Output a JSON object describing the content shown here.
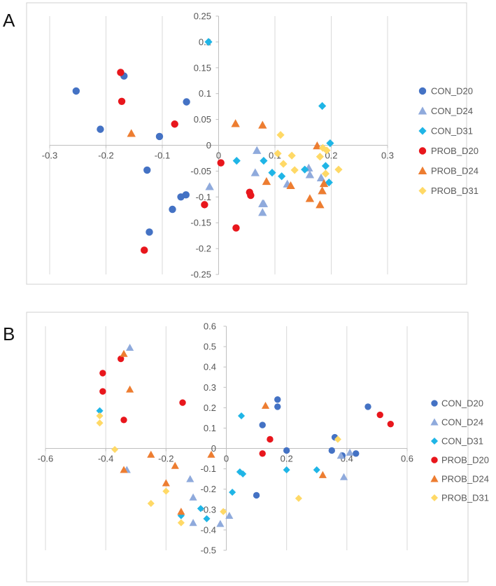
{
  "panels": {
    "a_letter": "A",
    "b_letter": "B"
  },
  "series_styles": [
    {
      "name": "CON_D20",
      "color": "#4472C4",
      "marker": "circle"
    },
    {
      "name": "CON_D24",
      "color": "#8FAADC",
      "marker": "triangle"
    },
    {
      "name": "CON_D31",
      "color": "#1FB5E6",
      "marker": "diamond"
    },
    {
      "name": "PROB_D20",
      "color": "#E8161C",
      "marker": "circle"
    },
    {
      "name": "PROB_D24",
      "color": "#ED7D31",
      "marker": "triangle"
    },
    {
      "name": "PROB_D31",
      "color": "#FFD966",
      "marker": "diamond"
    }
  ],
  "chart_data": [
    {
      "type": "scatter",
      "panel": "A",
      "title": "",
      "xlabel": "",
      "ylabel": "",
      "xlim": [
        -0.3,
        0.3
      ],
      "ylim": [
        -0.25,
        0.25
      ],
      "xticks": [
        "-0.3",
        "-0.2",
        "-0.1",
        "0",
        "0.1",
        "0.2",
        "0.3"
      ],
      "yticks": [
        "-0.25",
        "-0.2",
        "-0.15",
        "-0.1",
        "-0.05",
        "0",
        "0.05",
        "0.1",
        "0.15",
        "0.2",
        "0.25"
      ],
      "legend_position": "right",
      "series": [
        {
          "name": "CON_D20",
          "points": [
            [
              -0.253,
              0.105
            ],
            [
              -0.168,
              0.134
            ],
            [
              -0.21,
              0.031
            ],
            [
              -0.105,
              0.017
            ],
            [
              -0.057,
              0.084
            ],
            [
              -0.127,
              -0.048
            ],
            [
              -0.058,
              -0.096
            ],
            [
              -0.067,
              -0.1
            ],
            [
              -0.082,
              -0.124
            ],
            [
              -0.123,
              -0.168
            ]
          ]
        },
        {
          "name": "CON_D24",
          "points": [
            [
              -0.016,
              -0.08
            ],
            [
              0.068,
              -0.01
            ],
            [
              0.065,
              -0.053
            ],
            [
              0.078,
              -0.113
            ],
            [
              0.08,
              -0.113
            ],
            [
              0.078,
              -0.13
            ],
            [
              0.122,
              -0.075
            ],
            [
              0.16,
              -0.044
            ],
            [
              0.162,
              -0.057
            ],
            [
              0.182,
              -0.063
            ],
            [
              0.184,
              -0.088
            ]
          ]
        },
        {
          "name": "CON_D31",
          "points": [
            [
              -0.018,
              0.2
            ],
            [
              0.032,
              -0.03
            ],
            [
              0.08,
              -0.03
            ],
            [
              0.095,
              -0.053
            ],
            [
              0.112,
              -0.06
            ],
            [
              0.153,
              -0.047
            ],
            [
              0.184,
              0.076
            ],
            [
              0.198,
              0.004
            ],
            [
              0.19,
              -0.04
            ],
            [
              0.196,
              -0.072
            ]
          ]
        },
        {
          "name": "PROB_D20",
          "points": [
            [
              -0.174,
              0.141
            ],
            [
              -0.172,
              0.085
            ],
            [
              -0.078,
              0.041
            ],
            [
              0.004,
              -0.034
            ],
            [
              -0.025,
              -0.115
            ],
            [
              0.055,
              -0.091
            ],
            [
              0.057,
              -0.097
            ],
            [
              0.031,
              -0.16
            ],
            [
              -0.132,
              -0.203
            ]
          ]
        },
        {
          "name": "PROB_D24",
          "points": [
            [
              -0.155,
              0.023
            ],
            [
              0.03,
              0.042
            ],
            [
              0.078,
              0.039
            ],
            [
              0.085,
              -0.07
            ],
            [
              0.128,
              -0.078
            ],
            [
              0.162,
              -0.103
            ],
            [
              0.175,
              -0.001
            ],
            [
              0.18,
              -0.115
            ],
            [
              0.184,
              -0.088
            ],
            [
              0.187,
              -0.074
            ]
          ]
        },
        {
          "name": "PROB_D31",
          "points": [
            [
              0.105,
              -0.016
            ],
            [
              0.11,
              0.02
            ],
            [
              0.115,
              -0.036
            ],
            [
              0.13,
              -0.02
            ],
            [
              0.135,
              -0.048
            ],
            [
              0.18,
              -0.022
            ],
            [
              0.185,
              -0.005
            ],
            [
              0.192,
              -0.01
            ],
            [
              0.19,
              -0.055
            ],
            [
              0.213,
              -0.047
            ]
          ]
        }
      ]
    },
    {
      "type": "scatter",
      "panel": "B",
      "title": "",
      "xlabel": "",
      "ylabel": "",
      "xlim": [
        -0.6,
        0.6
      ],
      "ylim": [
        -0.5,
        0.6
      ],
      "xticks": [
        "-0.6",
        "-0.4",
        "-0.2",
        "0",
        "0.2",
        "0.4",
        "0.6"
      ],
      "yticks": [
        "-0.5",
        "-0.4",
        "-0.3",
        "-0.2",
        "-0.1",
        "0",
        "0.1",
        "0.2",
        "0.3",
        "0.4",
        "0.5",
        "0.6"
      ],
      "legend_position": "right",
      "series": [
        {
          "name": "CON_D20",
          "points": [
            [
              0.17,
              0.24
            ],
            [
              0.17,
              0.205
            ],
            [
              0.12,
              0.115
            ],
            [
              0.2,
              -0.01
            ],
            [
              0.35,
              -0.01
            ],
            [
              0.36,
              0.055
            ],
            [
              0.385,
              -0.035
            ],
            [
              0.43,
              -0.025
            ],
            [
              0.47,
              0.205
            ],
            [
              0.1,
              -0.23
            ]
          ]
        },
        {
          "name": "CON_D24",
          "points": [
            [
              -0.32,
              0.495
            ],
            [
              -0.33,
              -0.105
            ],
            [
              -0.12,
              -0.15
            ],
            [
              -0.11,
              -0.24
            ],
            [
              -0.11,
              -0.365
            ],
            [
              -0.02,
              -0.37
            ],
            [
              0.01,
              -0.33
            ],
            [
              0.38,
              -0.035
            ],
            [
              0.39,
              -0.14
            ],
            [
              0.41,
              -0.02
            ]
          ]
        },
        {
          "name": "CON_D31",
          "points": [
            [
              -0.42,
              0.185
            ],
            [
              -0.15,
              -0.33
            ],
            [
              -0.085,
              -0.295
            ],
            [
              -0.065,
              -0.345
            ],
            [
              0.02,
              -0.215
            ],
            [
              0.045,
              -0.115
            ],
            [
              0.055,
              -0.125
            ],
            [
              0.05,
              0.16
            ],
            [
              0.2,
              -0.105
            ],
            [
              0.3,
              -0.105
            ]
          ]
        },
        {
          "name": "PROB_D20",
          "points": [
            [
              -0.35,
              0.44
            ],
            [
              -0.41,
              0.37
            ],
            [
              -0.41,
              0.28
            ],
            [
              -0.34,
              0.14
            ],
            [
              -0.145,
              0.225
            ],
            [
              0.145,
              0.045
            ],
            [
              0.12,
              -0.025
            ],
            [
              0.51,
              0.165
            ],
            [
              0.545,
              0.12
            ]
          ]
        },
        {
          "name": "PROB_D24",
          "points": [
            [
              -0.34,
              0.465
            ],
            [
              -0.32,
              0.29
            ],
            [
              -0.34,
              -0.105
            ],
            [
              -0.25,
              -0.03
            ],
            [
              -0.17,
              -0.085
            ],
            [
              -0.2,
              -0.17
            ],
            [
              -0.15,
              -0.31
            ],
            [
              -0.05,
              -0.03
            ],
            [
              0.13,
              0.21
            ],
            [
              0.32,
              -0.13
            ]
          ]
        },
        {
          "name": "PROB_D31",
          "points": [
            [
              -0.42,
              0.16
            ],
            [
              -0.42,
              0.125
            ],
            [
              -0.37,
              -0.005
            ],
            [
              -0.2,
              -0.21
            ],
            [
              -0.25,
              -0.27
            ],
            [
              -0.15,
              -0.365
            ],
            [
              -0.01,
              -0.31
            ],
            [
              0.24,
              -0.245
            ],
            [
              0.37,
              0.045
            ]
          ]
        }
      ]
    }
  ]
}
